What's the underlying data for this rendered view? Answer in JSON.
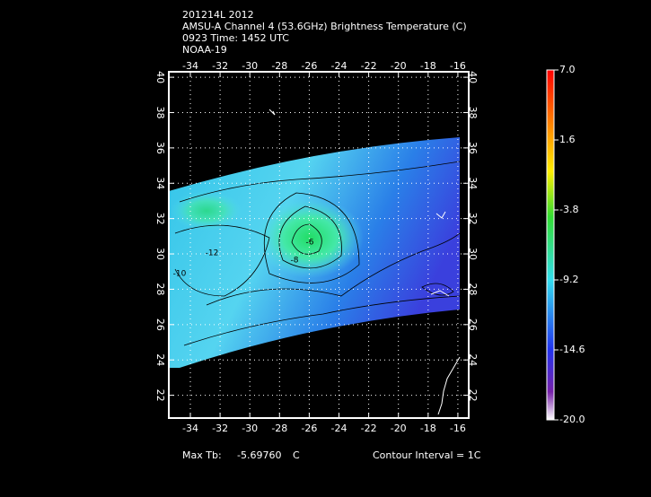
{
  "header": {
    "lines": [
      "201214L 2012",
      "AMSU-A Channel 4 (53.6GHz) Brightness Temperature (C)",
      "0923 Time: 1452 UTC",
      "NOAA-19"
    ]
  },
  "map": {
    "xlim": [
      -35.45,
      -15.27
    ],
    "ylim": [
      20.71,
      40.31
    ],
    "xticks": [
      -34,
      -32,
      -30,
      -28,
      -26,
      -24,
      -22,
      -20,
      -18,
      -16
    ],
    "yticks": [
      22,
      24,
      26,
      28,
      30,
      32,
      34,
      36,
      38,
      40
    ],
    "grid": true,
    "contour_labels": [
      "-6",
      "-8",
      "-12",
      "-10"
    ]
  },
  "colorbar": {
    "lim": [
      -20,
      7
    ],
    "ticks": [
      {
        "value": 7,
        "label": "7.0"
      },
      1.6,
      -3.8,
      -9.2,
      -14.6,
      {
        "value": -20,
        "label": "-20.0"
      }
    ]
  },
  "footer": {
    "max_label": "Max Tb:",
    "max_value": "-5.69760",
    "max_unit": "C",
    "contour": "Contour Interval = 1C"
  }
}
